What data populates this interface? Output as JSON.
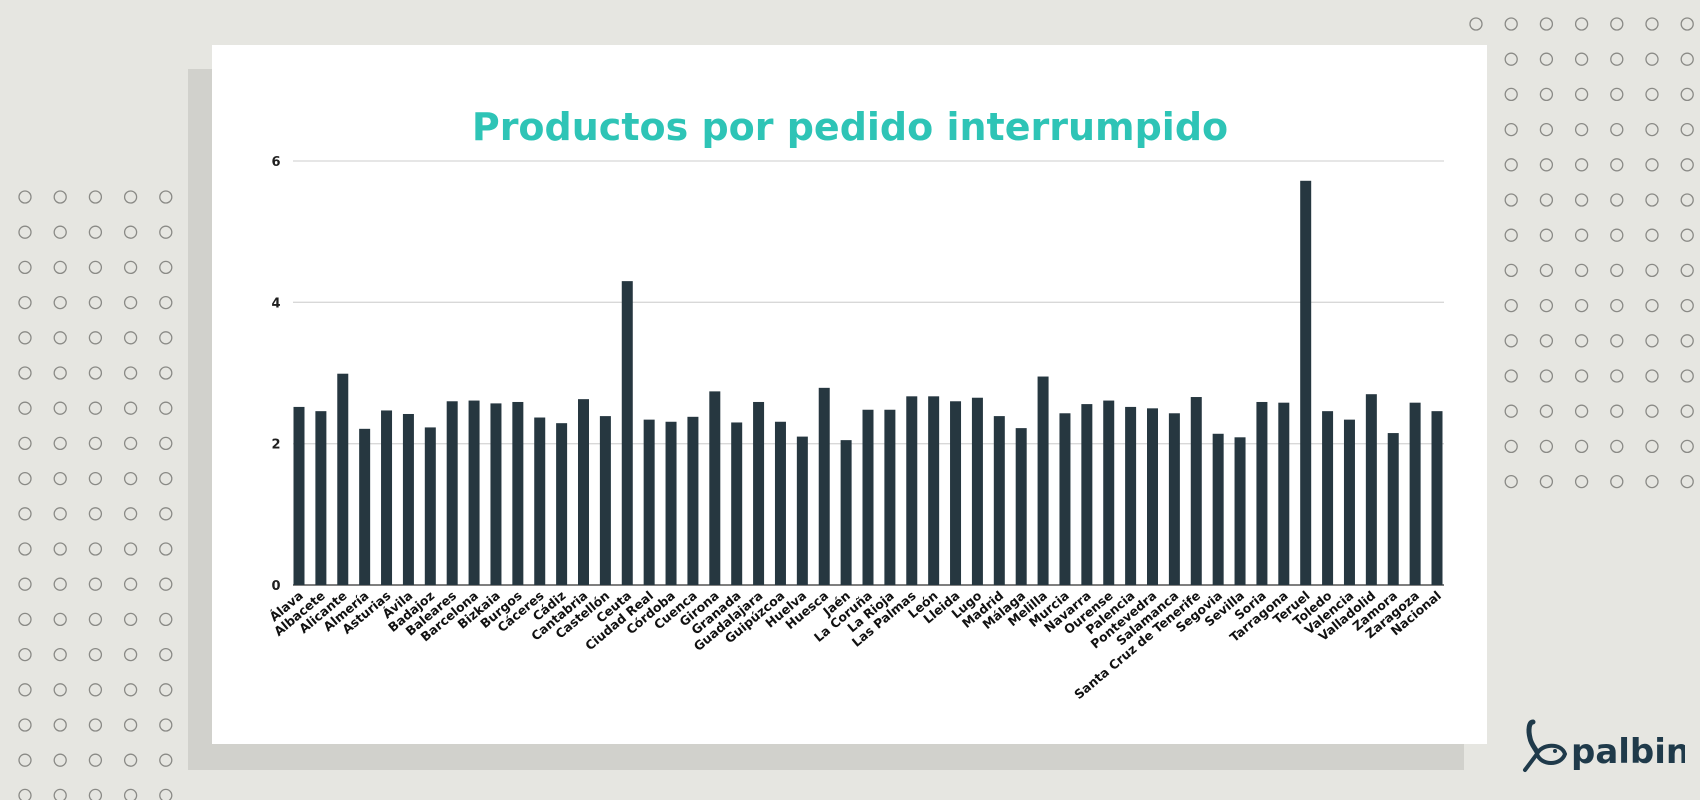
{
  "chart_data": {
    "type": "bar",
    "title": "Productos por pedido interrumpido",
    "xlabel": "",
    "ylabel": "",
    "ylim": [
      0,
      6
    ],
    "yticks": [
      0,
      2,
      4,
      6
    ],
    "grid": true,
    "bar_color": "#263740",
    "title_color": "#2ec4b6",
    "categories": [
      "Álava",
      "Albacete",
      "Alicante",
      "Almería",
      "Asturias",
      "Ávila",
      "Badajoz",
      "Baleares",
      "Barcelona",
      "Bizkaia",
      "Burgos",
      "Cáceres",
      "Cádiz",
      "Cantabria",
      "Castellón",
      "Ceuta",
      "Ciudad Real",
      "Córdoba",
      "Cuenca",
      "Girona",
      "Granada",
      "Guadalajara",
      "Guipúzcoa",
      "Huelva",
      "Huesca",
      "Jaén",
      "La Coruña",
      "La Rioja",
      "Las Palmas",
      "León",
      "Lleida",
      "Lugo",
      "Madrid",
      "Málaga",
      "Melilla",
      "Murcia",
      "Navarra",
      "Ourense",
      "Palencia",
      "Pontevedra",
      "Salamanca",
      "Santa Cruz de Tenerife",
      "Segovia",
      "Sevilla",
      "Soria",
      "Tarragona",
      "Teruel",
      "Toledo",
      "Valencia",
      "Valladolid",
      "Zamora",
      "Zaragoza",
      "Nacional"
    ],
    "values": [
      2.52,
      2.46,
      2.99,
      2.21,
      2.47,
      2.42,
      2.23,
      2.6,
      2.61,
      2.57,
      2.59,
      2.37,
      2.29,
      2.63,
      2.39,
      4.3,
      2.34,
      2.31,
      2.38,
      2.74,
      2.3,
      2.59,
      2.31,
      2.1,
      2.79,
      2.05,
      2.48,
      2.48,
      2.67,
      2.67,
      2.6,
      2.65,
      2.39,
      2.22,
      2.95,
      2.43,
      2.56,
      2.61,
      2.52,
      2.5,
      2.43,
      2.66,
      2.14,
      2.09,
      2.59,
      2.58,
      5.72,
      2.46,
      2.34,
      2.7,
      2.15,
      2.58,
      2.46
    ]
  },
  "brand": {
    "logo_text": "palbin",
    "color": "#1f3a4a"
  }
}
